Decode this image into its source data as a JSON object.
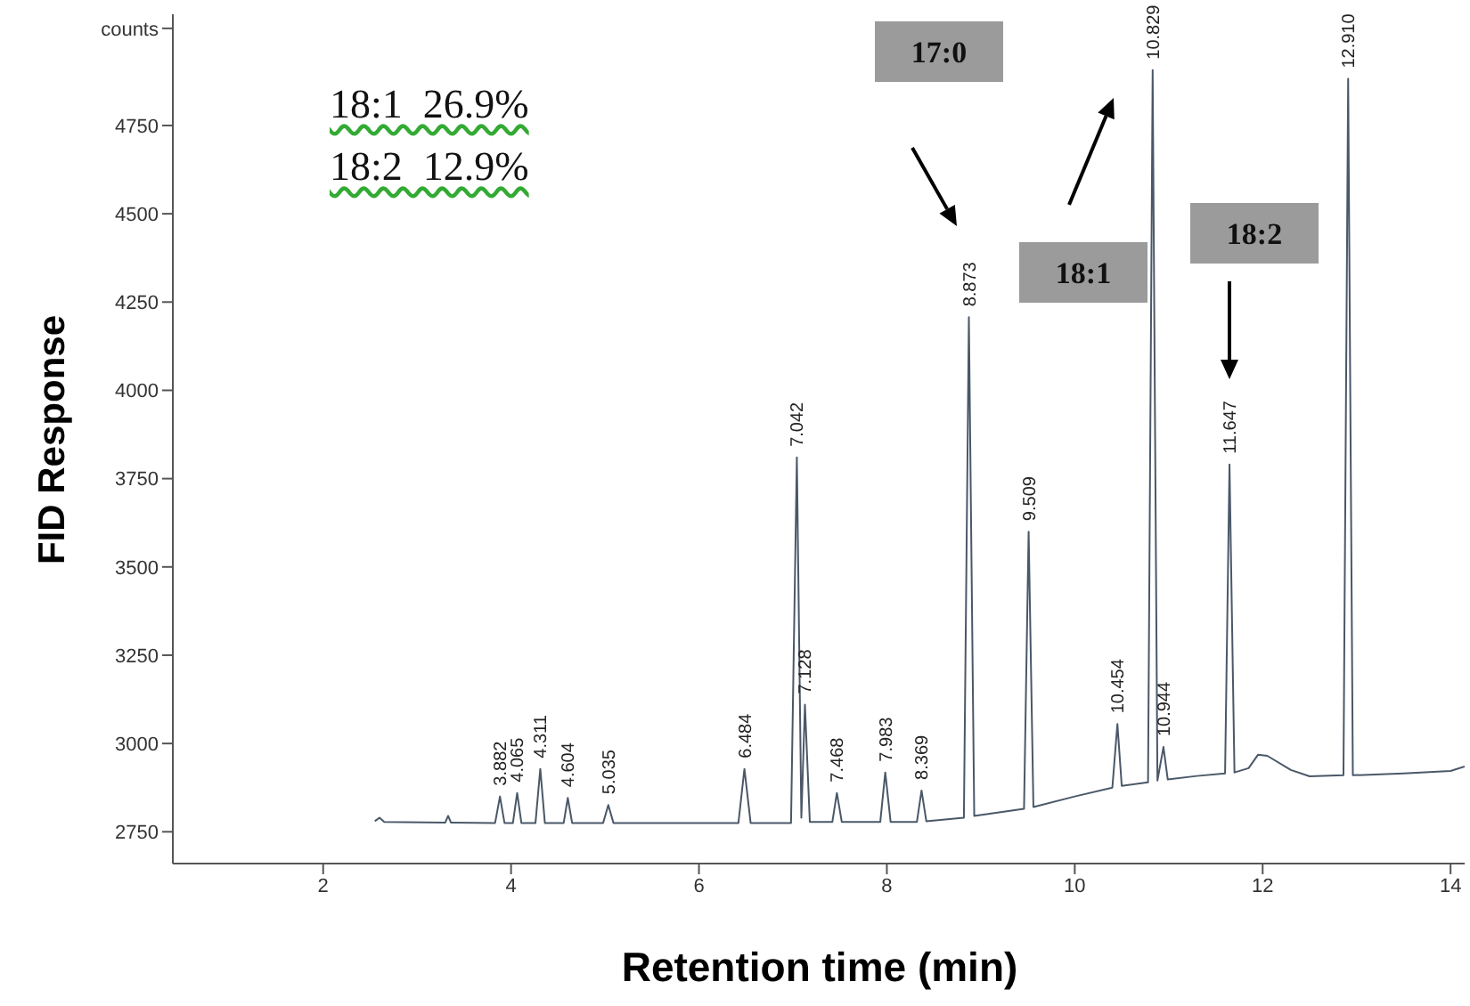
{
  "chart_data": {
    "type": "line",
    "xlabel": "Retention time (min)",
    "ylabel": "FID Response",
    "x": [
      2.55,
      2.6,
      2.65,
      3.3,
      3.33,
      3.36,
      3.83,
      3.882,
      3.93,
      4.02,
      4.065,
      4.11,
      4.26,
      4.311,
      4.36,
      4.56,
      4.604,
      4.65,
      4.98,
      5.035,
      5.09,
      6.42,
      6.484,
      6.55,
      6.98,
      7.042,
      7.09,
      7.128,
      7.18,
      7.42,
      7.468,
      7.52,
      7.93,
      7.983,
      8.04,
      8.32,
      8.369,
      8.42,
      8.82,
      8.873,
      8.93,
      9.46,
      9.509,
      9.56,
      10.0,
      10.4,
      10.454,
      10.5,
      10.78,
      10.829,
      10.88,
      10.944,
      10.99,
      11.3,
      11.6,
      11.647,
      11.7,
      11.85,
      11.95,
      12.05,
      12.3,
      12.5,
      12.86,
      12.91,
      12.96,
      13.5,
      14.0,
      14.15
    ],
    "series": [
      {
        "color": "#4a5868",
        "values": [
          2780,
          2790,
          2778,
          2776,
          2795,
          2776,
          2775,
          2850,
          2775,
          2775,
          2860,
          2775,
          2775,
          2928,
          2775,
          2775,
          2846,
          2775,
          2775,
          2826,
          2775,
          2775,
          2928,
          2775,
          2775,
          3810,
          2790,
          3110,
          2778,
          2778,
          2860,
          2778,
          2778,
          2918,
          2778,
          2778,
          2867,
          2780,
          2790,
          4207,
          2795,
          2815,
          3600,
          2820,
          2850,
          2875,
          3055,
          2880,
          2890,
          4907,
          2895,
          2990,
          2898,
          2908,
          2915,
          3790,
          2918,
          2930,
          2968,
          2965,
          2925,
          2907,
          2910,
          4882,
          2910,
          2915,
          2922,
          2935
        ]
      }
    ],
    "xlim": [
      0.4,
      14.15
    ],
    "xticks": [
      2,
      4,
      6,
      8,
      10,
      12,
      14
    ],
    "ylim": [
      2660,
      5065
    ],
    "yticks": [
      2750,
      3000,
      3250,
      3500,
      3750,
      4000,
      4250,
      4500,
      4750,
      {
        "value": 5025,
        "label": "counts"
      }
    ],
    "grid": false,
    "legend": false,
    "marker": "none",
    "line_style": "solid",
    "annotations": [
      "18:1  26.9%",
      "18:2  12.9%",
      "17:0",
      "18:1",
      "18:2",
      {
        "text": "3.882",
        "x": 3.882,
        "y": 2850
      },
      {
        "text": "4.065",
        "x": 4.065,
        "y": 2860
      },
      {
        "text": "4.311",
        "x": 4.311,
        "y": 2928
      },
      {
        "text": "4.604",
        "x": 4.604,
        "y": 2846
      },
      {
        "text": "5.035",
        "x": 5.035,
        "y": 2826
      },
      {
        "text": "6.484",
        "x": 6.484,
        "y": 2928
      },
      {
        "text": "7.042",
        "x": 7.042,
        "y": 3810
      },
      {
        "text": "7.128",
        "x": 7.128,
        "y": 3110
      },
      {
        "text": "7.468",
        "x": 7.468,
        "y": 2860
      },
      {
        "text": "7.983",
        "x": 7.983,
        "y": 2918
      },
      {
        "text": "8.369",
        "x": 8.369,
        "y": 2867
      },
      {
        "text": "8.873",
        "x": 8.873,
        "y": 4207
      },
      {
        "text": "9.509",
        "x": 9.509,
        "y": 3600
      },
      {
        "text": "10.454",
        "x": 10.454,
        "y": 3055
      },
      {
        "text": "10.829",
        "x": 10.829,
        "y": 4907
      },
      {
        "text": "10.944",
        "x": 10.944,
        "y": 2990
      },
      {
        "text": "11.647",
        "x": 11.647,
        "y": 3790
      },
      {
        "text": "12.910",
        "x": 12.91,
        "y": 4882
      }
    ]
  }
}
